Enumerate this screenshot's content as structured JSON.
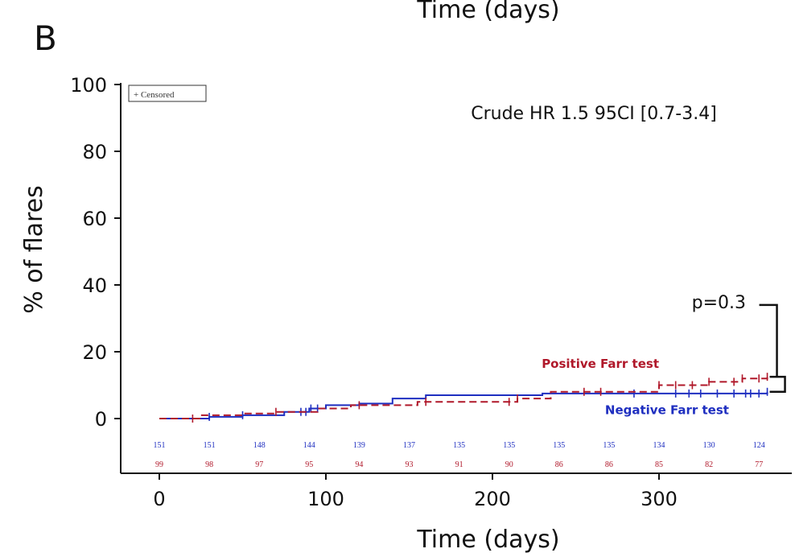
{
  "panel_letter": "B",
  "top_cut_label": "Time (days)",
  "colors": {
    "positive": "#b0182a",
    "negative": "#1f2fc0",
    "axis": "#111111"
  },
  "chart_data": {
    "type": "line",
    "xlabel": "Time (days)",
    "ylabel": "% of flares",
    "xlim": [
      0,
      380
    ],
    "ylim": [
      0,
      100
    ],
    "xticks": [
      0,
      100,
      200,
      300
    ],
    "yticks": [
      0,
      20,
      40,
      60,
      80,
      100
    ],
    "legend_label": "+ Censored",
    "legend_position": "top-left",
    "annotation_hr": "Crude HR 1.5 95CI [0.7-3.4]",
    "annotation_p": "p=0.3",
    "series": [
      {
        "name": "Positive Farr test",
        "style": "dashed",
        "color": "#b0182a",
        "x": [
          0,
          25,
          50,
          70,
          95,
          115,
          155,
          215,
          235,
          300,
          330,
          350,
          365
        ],
        "y": [
          0,
          1,
          1.5,
          2,
          3,
          4,
          5,
          6,
          8,
          10,
          11,
          12,
          12.5
        ],
        "censored_x": [
          20,
          70,
          120,
          160,
          210,
          215,
          255,
          265,
          300,
          310,
          320,
          330,
          345,
          350,
          360,
          365
        ]
      },
      {
        "name": "Negative Farr test",
        "style": "solid",
        "color": "#1f2fc0",
        "x": [
          0,
          30,
          50,
          75,
          90,
          100,
          120,
          140,
          160,
          230,
          365
        ],
        "y": [
          0,
          0.5,
          1,
          2,
          3,
          4,
          4.5,
          6,
          7,
          7.5,
          8
        ],
        "censored_x": [
          30,
          50,
          85,
          88,
          91,
          95,
          285,
          310,
          318,
          325,
          335,
          345,
          352,
          355,
          360,
          365
        ]
      }
    ],
    "risk_table": {
      "times": [
        0,
        30,
        60,
        90,
        120,
        150,
        180,
        210,
        240,
        270,
        300,
        330,
        360
      ],
      "negative": [
        151,
        151,
        148,
        144,
        139,
        137,
        135,
        135,
        135,
        135,
        134,
        130,
        124
      ],
      "positive": [
        99,
        98,
        97,
        95,
        94,
        93,
        91,
        90,
        86,
        86,
        85,
        82,
        77
      ]
    }
  }
}
